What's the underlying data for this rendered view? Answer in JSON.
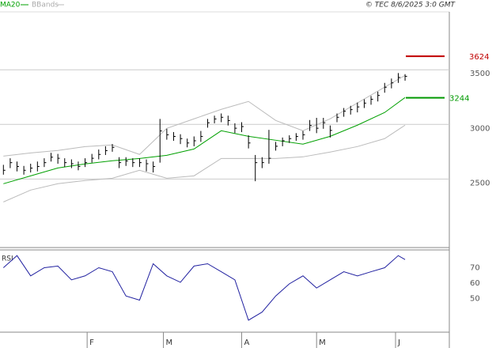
{
  "chart_data": [
    {
      "type": "ohlc",
      "copyright": "© TEC 8/6/2025 3:0 GMT",
      "ylim": [
        1880,
        4030
      ],
      "yticks": [
        2500,
        3000,
        3500
      ],
      "grid": true,
      "xlim": [
        -0.5,
        65.5
      ],
      "bars": {
        "color": "#000000",
        "close": [
          2580,
          2650,
          2615,
          2580,
          2600,
          2615,
          2650,
          2700,
          2690,
          2650,
          2640,
          2615,
          2650,
          2690,
          2725,
          2760,
          2790,
          2650,
          2665,
          2650,
          2650,
          2640,
          2615,
          2940,
          2905,
          2890,
          2870,
          2830,
          2850,
          2890,
          3015,
          3050,
          3065,
          3035,
          2965,
          2980,
          2830,
          2650,
          2650,
          2690,
          2800,
          2850,
          2870,
          2890,
          2905,
          2990,
          2965,
          3015,
          2945,
          3065,
          3120,
          3135,
          3160,
          3195,
          3230,
          3265,
          3340,
          3380,
          3430,
          3440
        ],
        "high": [
          2630,
          2690,
          2660,
          2620,
          2640,
          2660,
          2690,
          2740,
          2730,
          2690,
          2680,
          2660,
          2690,
          2730,
          2770,
          2800,
          2820,
          2700,
          2700,
          2690,
          2690,
          2680,
          2660,
          3050,
          2960,
          2930,
          2910,
          2870,
          2890,
          2940,
          3050,
          3080,
          3100,
          3080,
          3010,
          3020,
          2900,
          2720,
          2700,
          2950,
          2840,
          2880,
          2900,
          2920,
          2940,
          3040,
          3060,
          3060,
          2990,
          3100,
          3150,
          3170,
          3200,
          3230,
          3260,
          3300,
          3380,
          3420,
          3470,
          3460
        ],
        "low": [
          2540,
          2600,
          2570,
          2540,
          2560,
          2570,
          2610,
          2660,
          2640,
          2610,
          2600,
          2580,
          2610,
          2650,
          2680,
          2720,
          2750,
          2600,
          2620,
          2610,
          2610,
          2570,
          2560,
          2650,
          2860,
          2850,
          2820,
          2790,
          2800,
          2840,
          2970,
          3010,
          3020,
          2990,
          2920,
          2930,
          2780,
          2480,
          2600,
          2640,
          2760,
          2800,
          2830,
          2850,
          2860,
          2940,
          2920,
          2960,
          2880,
          3020,
          3070,
          3090,
          3110,
          3150,
          3180,
          3210,
          3290,
          3330,
          3380,
          3400
        ]
      },
      "series": [
        {
          "name": "MA20",
          "color": "#00a000",
          "x": [
            0,
            4,
            8,
            12,
            16,
            20,
            24,
            28,
            32,
            36,
            40,
            44,
            48,
            52,
            56,
            59
          ],
          "values": [
            2457,
            2529,
            2601,
            2638,
            2667,
            2688,
            2717,
            2775,
            2942,
            2891,
            2855,
            2819,
            2891,
            2993,
            3109,
            3246
          ]
        },
        {
          "name": "BBands",
          "color": "#bbbbbb",
          "x": [
            0,
            4,
            8,
            12,
            16,
            20,
            24,
            28,
            32,
            36,
            40,
            44,
            48,
            52,
            56,
            59
          ],
          "upper": [
            2710,
            2739,
            2761,
            2797,
            2812,
            2725,
            2964,
            3051,
            3138,
            3210,
            3036,
            2942,
            3051,
            3196,
            3341,
            3449
          ],
          "lower": [
            2290,
            2399,
            2457,
            2486,
            2507,
            2580,
            2507,
            2529,
            2688,
            2688,
            2688,
            2703,
            2747,
            2797,
            2870,
            2993
          ]
        }
      ],
      "markers": [
        {
          "value": 3624,
          "color": "#c00000"
        },
        {
          "value": 3244,
          "color": "#009900"
        }
      ]
    },
    {
      "type": "line",
      "title": "RSI",
      "ylim": [
        28,
        81.6
      ],
      "yticks": [
        70,
        60,
        50
      ],
      "grid": false,
      "xlim": [
        -0.5,
        65.5
      ],
      "xticks": [
        {
          "value": 12.3,
          "label": "F"
        },
        {
          "value": 23.5,
          "label": "M"
        },
        {
          "value": 35,
          "label": "A"
        },
        {
          "value": 46,
          "label": "M"
        },
        {
          "value": 57.6,
          "label": "J"
        }
      ],
      "series": [
        {
          "name": "RSI",
          "color": "#2020a0",
          "x": [
            0,
            2,
            4,
            6,
            8,
            10,
            12,
            14,
            16,
            18,
            20,
            22,
            24,
            26,
            28,
            30,
            32,
            34,
            36,
            38,
            40,
            42,
            44,
            46,
            48,
            50,
            52,
            54,
            56,
            58,
            59
          ],
          "values": [
            70,
            77.9,
            64.7,
            70,
            71.1,
            62.1,
            64.7,
            70,
            67.4,
            51.6,
            48.9,
            72.6,
            64.7,
            60.5,
            71.1,
            72.6,
            67.4,
            62.1,
            35.8,
            41.1,
            51.6,
            59.5,
            64.7,
            56.8,
            62.1,
            67.4,
            64.7,
            67.4,
            70,
            77.9,
            75.3
          ]
        }
      ]
    }
  ]
}
